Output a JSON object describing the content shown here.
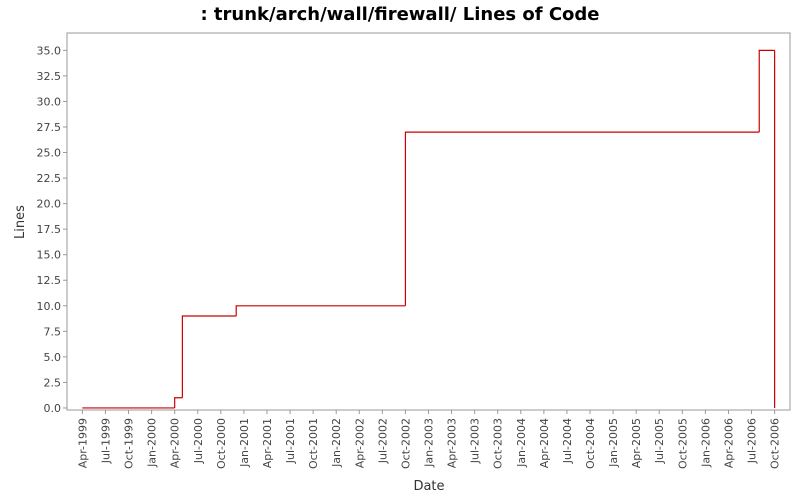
{
  "chart_data": {
    "type": "step",
    "title": ": trunk/arch/wall/firewall/ Lines of Code",
    "x_label": "Date",
    "y_label": "Lines",
    "x": [
      "1999-04",
      "2000-04",
      "2000-05",
      "2000-12",
      "2002-10",
      "2006-08",
      "2006-10"
    ],
    "series": [
      {
        "name": "Lines",
        "color": "#cc0000",
        "values": [
          0,
          1,
          9,
          10,
          27,
          35,
          0
        ]
      }
    ],
    "xlim": [
      "1999-02",
      "2006-12"
    ],
    "xticks": [
      {
        "value": "1999-04",
        "label": "Apr-1999"
      },
      {
        "value": "1999-07",
        "label": "Jul-1999"
      },
      {
        "value": "1999-10",
        "label": "Oct-1999"
      },
      {
        "value": "2000-01",
        "label": "Jan-2000"
      },
      {
        "value": "2000-04",
        "label": "Apr-2000"
      },
      {
        "value": "2000-07",
        "label": "Jul-2000"
      },
      {
        "value": "2000-10",
        "label": "Oct-2000"
      },
      {
        "value": "2001-01",
        "label": "Jan-2001"
      },
      {
        "value": "2001-04",
        "label": "Apr-2001"
      },
      {
        "value": "2001-07",
        "label": "Jul-2001"
      },
      {
        "value": "2001-10",
        "label": "Oct-2001"
      },
      {
        "value": "2002-01",
        "label": "Jan-2002"
      },
      {
        "value": "2002-04",
        "label": "Apr-2002"
      },
      {
        "value": "2002-07",
        "label": "Jul-2002"
      },
      {
        "value": "2002-10",
        "label": "Oct-2002"
      },
      {
        "value": "2003-01",
        "label": "Jan-2003"
      },
      {
        "value": "2003-04",
        "label": "Apr-2003"
      },
      {
        "value": "2003-07",
        "label": "Jul-2003"
      },
      {
        "value": "2003-10",
        "label": "Oct-2003"
      },
      {
        "value": "2004-01",
        "label": "Jan-2004"
      },
      {
        "value": "2004-04",
        "label": "Apr-2004"
      },
      {
        "value": "2004-07",
        "label": "Jul-2004"
      },
      {
        "value": "2004-10",
        "label": "Oct-2004"
      },
      {
        "value": "2005-01",
        "label": "Jan-2005"
      },
      {
        "value": "2005-04",
        "label": "Apr-2005"
      },
      {
        "value": "2005-07",
        "label": "Jul-2005"
      },
      {
        "value": "2005-10",
        "label": "Oct-2005"
      },
      {
        "value": "2006-01",
        "label": "Jan-2006"
      },
      {
        "value": "2006-04",
        "label": "Apr-2006"
      },
      {
        "value": "2006-07",
        "label": "Jul-2006"
      },
      {
        "value": "2006-10",
        "label": "Oct-2006"
      }
    ],
    "ylim": [
      -0.2,
      36.7
    ],
    "yticks": [
      {
        "value": 0,
        "label": "0.0"
      },
      {
        "value": 2.5,
        "label": "2.5"
      },
      {
        "value": 5,
        "label": "5.0"
      },
      {
        "value": 7.5,
        "label": "7.5"
      },
      {
        "value": 10,
        "label": "10.0"
      },
      {
        "value": 12.5,
        "label": "12.5"
      },
      {
        "value": 15,
        "label": "15.0"
      },
      {
        "value": 17.5,
        "label": "17.5"
      },
      {
        "value": 20,
        "label": "20.0"
      },
      {
        "value": 22.5,
        "label": "22.5"
      },
      {
        "value": 25,
        "label": "25.0"
      },
      {
        "value": 27.5,
        "label": "27.5"
      },
      {
        "value": 30,
        "label": "30.0"
      },
      {
        "value": 32.5,
        "label": "32.5"
      },
      {
        "value": 35,
        "label": "35.0"
      }
    ]
  }
}
